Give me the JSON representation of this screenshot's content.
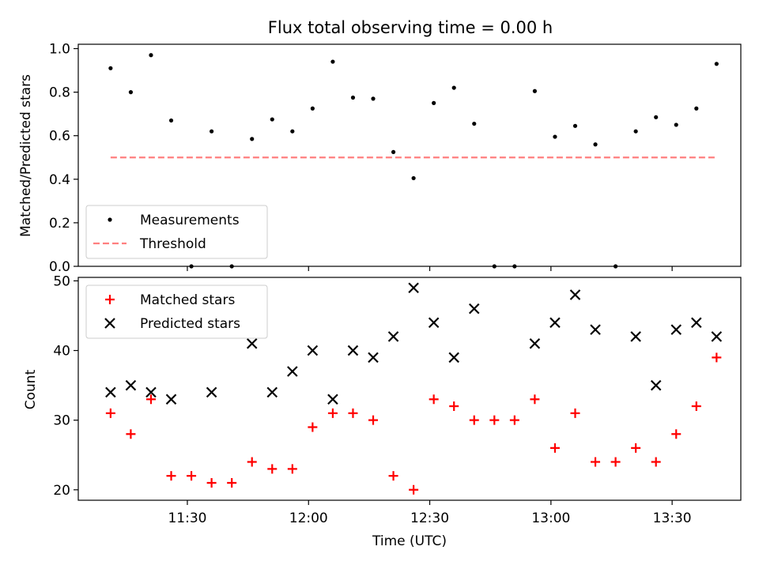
{
  "chart_data": [
    {
      "type": "scatter",
      "title": "Flux total observing time = 0.00 h",
      "xlabel": "",
      "ylabel": "Matched/Predicted stars",
      "ylim": [
        0.0,
        1.02
      ],
      "yticks": [
        "0.0",
        "0.2",
        "0.4",
        "0.6",
        "0.8",
        "1.0"
      ],
      "ytick_values": [
        0.0,
        0.2,
        0.4,
        0.6,
        0.8,
        1.0
      ],
      "xlim": [
        "11:03",
        "13:47"
      ],
      "xticks": [
        "11:30",
        "12:00",
        "12:30",
        "13:00",
        "13:30"
      ],
      "grid": false,
      "legend_position": "lower-left",
      "series": [
        {
          "name": "Measurements",
          "marker": "dot",
          "color": "#000000",
          "x": [
            "11:11",
            "11:16",
            "11:21",
            "11:26",
            "11:31",
            "11:36",
            "11:41",
            "11:46",
            "11:51",
            "11:56",
            "12:01",
            "12:06",
            "12:11",
            "12:16",
            "12:21",
            "12:26",
            "12:31",
            "12:36",
            "12:41",
            "12:46",
            "12:51",
            "12:56",
            "13:01",
            "13:06",
            "13:11",
            "13:16",
            "13:21",
            "13:26",
            "13:31",
            "13:36",
            "13:41"
          ],
          "y": [
            0.91,
            0.8,
            0.97,
            0.67,
            0.0,
            0.62,
            0.0,
            0.585,
            0.675,
            0.62,
            0.725,
            0.94,
            0.775,
            0.77,
            0.525,
            0.405,
            0.75,
            0.82,
            0.655,
            0.0,
            0.0,
            0.805,
            0.595,
            0.645,
            0.56,
            0.0,
            0.62,
            0.685,
            0.65,
            0.725,
            0.93
          ]
        },
        {
          "name": "Threshold",
          "style": "dashed",
          "color": "#ff7f7f",
          "x": [
            "11:11",
            "13:41"
          ],
          "y": [
            0.5,
            0.5
          ]
        }
      ]
    },
    {
      "type": "scatter",
      "title": "",
      "xlabel": "Time (UTC)",
      "ylabel": "Count",
      "ylim": [
        18.5,
        50.5
      ],
      "yticks": [
        "20",
        "30",
        "40",
        "50"
      ],
      "ytick_values": [
        20,
        30,
        40,
        50
      ],
      "xlim": [
        "11:03",
        "13:47"
      ],
      "xticks": [
        "11:30",
        "12:00",
        "12:30",
        "13:00",
        "13:30"
      ],
      "grid": false,
      "legend_position": "top-left",
      "series": [
        {
          "name": "Matched stars",
          "marker": "plus",
          "color": "#ff0000",
          "x": [
            "11:11",
            "11:16",
            "11:21",
            "11:26",
            "11:31",
            "11:36",
            "11:41",
            "11:46",
            "11:51",
            "11:56",
            "12:01",
            "12:06",
            "12:11",
            "12:16",
            "12:21",
            "12:26",
            "12:31",
            "12:36",
            "12:41",
            "12:46",
            "12:51",
            "12:56",
            "13:01",
            "13:06",
            "13:11",
            "13:16",
            "13:21",
            "13:26",
            "13:31",
            "13:36",
            "13:41"
          ],
          "y": [
            31,
            28,
            33,
            22,
            22,
            21,
            21,
            24,
            23,
            23,
            29,
            31,
            31,
            30,
            22,
            20,
            33,
            32,
            30,
            30,
            30,
            33,
            26,
            31,
            24,
            24,
            26,
            24,
            28,
            32,
            39
          ]
        },
        {
          "name": "Predicted stars",
          "marker": "x",
          "color": "#000000",
          "x": [
            "11:11",
            "11:16",
            "11:21",
            "11:26",
            "11:36",
            "11:46",
            "11:51",
            "11:56",
            "12:01",
            "12:06",
            "12:11",
            "12:16",
            "12:21",
            "12:26",
            "12:31",
            "12:36",
            "12:41",
            "12:56",
            "13:01",
            "13:06",
            "13:11",
            "13:21",
            "13:26",
            "13:31",
            "13:36",
            "13:41"
          ],
          "y": [
            34,
            35,
            34,
            33,
            34,
            41,
            34,
            37,
            40,
            33,
            40,
            39,
            42,
            49,
            44,
            39,
            46,
            41,
            44,
            48,
            43,
            42,
            35,
            43,
            44,
            42
          ]
        }
      ]
    }
  ]
}
